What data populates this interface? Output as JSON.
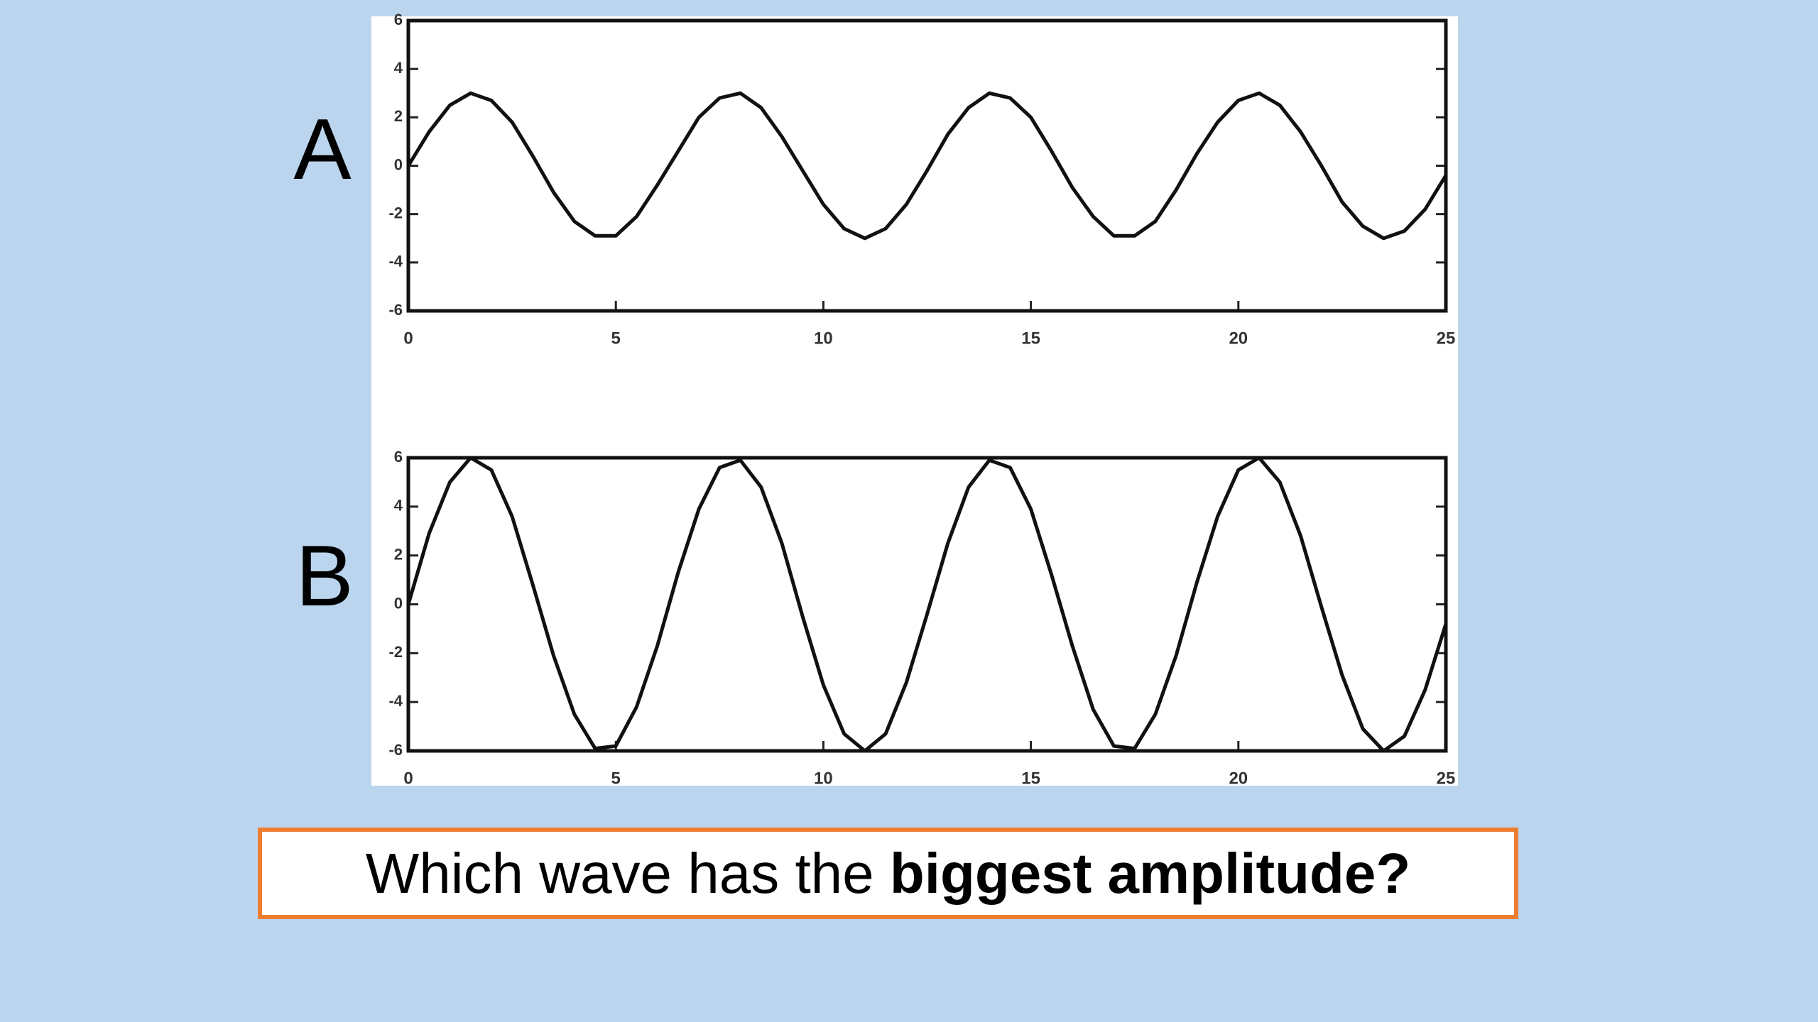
{
  "chart_data": [
    {
      "type": "line",
      "xlim": [
        0,
        25
      ],
      "xticks": [
        0,
        5,
        10,
        15,
        20,
        25
      ],
      "ylim": [
        -6,
        6
      ],
      "yticks": [
        -6,
        -4,
        -2,
        0,
        2,
        4,
        6
      ],
      "x": [
        0,
        0.5,
        1,
        1.5,
        2,
        2.5,
        3,
        3.5,
        4,
        4.5,
        5,
        5.5,
        6,
        6.5,
        7,
        7.5,
        8,
        8.5,
        9,
        9.5,
        10,
        10.5,
        11,
        11.5,
        12,
        12.5,
        13,
        13.5,
        14,
        14.5,
        15,
        15.5,
        16,
        16.5,
        17,
        17.5,
        18,
        18.5,
        19,
        19.5,
        20,
        20.5,
        21,
        21.5,
        22,
        22.5,
        23,
        23.5,
        24,
        24.5,
        25
      ],
      "series": [
        {
          "name": "A",
          "color": "#111111",
          "values": [
            0,
            1.4,
            2.5,
            3.0,
            2.7,
            1.8,
            0.4,
            -1.1,
            -2.3,
            -2.9,
            -2.9,
            -2.1,
            -0.8,
            0.6,
            2.0,
            2.8,
            3.0,
            2.4,
            1.2,
            -0.2,
            -1.6,
            -2.6,
            -3.0,
            -2.6,
            -1.6,
            -0.2,
            1.3,
            2.4,
            3.0,
            2.8,
            2.0,
            0.6,
            -0.9,
            -2.1,
            -2.9,
            -2.9,
            -2.3,
            -1.0,
            0.5,
            1.8,
            2.7,
            3.0,
            2.5,
            1.4,
            0.0,
            -1.5,
            -2.5,
            -3.0,
            -2.7,
            -1.8,
            -0.4
          ]
        }
      ]
    },
    {
      "type": "line",
      "xlim": [
        0,
        25
      ],
      "xticks": [
        0,
        5,
        10,
        15,
        20,
        25
      ],
      "ylim": [
        -6,
        6
      ],
      "yticks": [
        -6,
        -4,
        -2,
        0,
        2,
        4,
        6
      ],
      "x": [
        0,
        0.5,
        1,
        1.5,
        2,
        2.5,
        3,
        3.5,
        4,
        4.5,
        5,
        5.5,
        6,
        6.5,
        7,
        7.5,
        8,
        8.5,
        9,
        9.5,
        10,
        10.5,
        11,
        11.5,
        12,
        12.5,
        13,
        13.5,
        14,
        14.5,
        15,
        15.5,
        16,
        16.5,
        17,
        17.5,
        18,
        18.5,
        19,
        19.5,
        20,
        20.5,
        21,
        21.5,
        22,
        22.5,
        23,
        23.5,
        24,
        24.5,
        25
      ],
      "series": [
        {
          "name": "B",
          "color": "#111111",
          "values": [
            0,
            2.9,
            5.0,
            6.0,
            5.5,
            3.6,
            0.8,
            -2.1,
            -4.5,
            -5.9,
            -5.8,
            -4.2,
            -1.7,
            1.3,
            3.9,
            5.6,
            5.9,
            4.8,
            2.5,
            -0.5,
            -3.3,
            -5.3,
            -6.0,
            -5.3,
            -3.2,
            -0.4,
            2.5,
            4.8,
            5.9,
            5.6,
            3.9,
            1.2,
            -1.7,
            -4.3,
            -5.8,
            -5.9,
            -4.5,
            -2.1,
            0.9,
            3.6,
            5.5,
            6.0,
            5.0,
            2.8,
            -0.1,
            -2.9,
            -5.1,
            -6.0,
            -5.4,
            -3.5,
            -0.8
          ]
        }
      ]
    }
  ],
  "question": {
    "prefix": "Which wave has the ",
    "emphasis": "biggest amplitude?"
  }
}
